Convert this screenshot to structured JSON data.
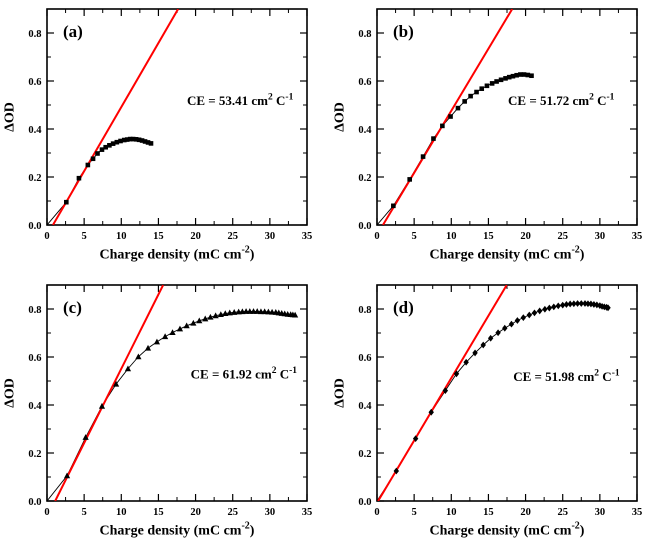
{
  "figure": {
    "background": "#ffffff",
    "axis_color": "#000000",
    "marker_color": "#000000",
    "fit_line_color": "#ff0000"
  },
  "chart_data": [
    {
      "id": "a",
      "type": "scatter",
      "panel_label": "(a)",
      "marker": "square",
      "marker_color": "#000000",
      "connector_color": "#000000",
      "fit_line": {
        "color": "#ff0000",
        "x_intercept": 0.8,
        "slope_od_per_mC": 0.05341
      },
      "annotation": {
        "prefix": "CE = ",
        "value": "53.41",
        "unit_a": " cm",
        "sup_a": "2",
        "unit_b": " C",
        "sup_b": "-1"
      },
      "annotation_pos": {
        "x": 26.0,
        "y": 0.5
      },
      "xlabel": {
        "main": "Charge density (mC cm",
        "sup": "-2",
        "close": ")"
      },
      "ylabel": "ΔOD",
      "xlim": [
        0,
        35
      ],
      "ylim": [
        0,
        0.9
      ],
      "x_ticks": {
        "values": [
          0,
          5,
          10,
          15,
          20,
          25,
          30,
          35
        ],
        "labels": [
          "0",
          "5",
          "10",
          "15",
          "20",
          "25",
          "30",
          "35"
        ],
        "minor_step": 2.5
      },
      "y_ticks": {
        "values": [
          0,
          0.2,
          0.4,
          0.6,
          0.8
        ],
        "labels": [
          "0.0",
          "0.2",
          "0.4",
          "0.6",
          "0.8"
        ],
        "minor_step": 0.1
      },
      "x": [
        2.6,
        4.3,
        5.5,
        6.2,
        6.8,
        7.4,
        7.9,
        8.4,
        8.9,
        9.4,
        9.9,
        10.4,
        10.8,
        11.2,
        11.6,
        12.0,
        12.4,
        12.8,
        13.2,
        13.6,
        14.0
      ],
      "y": [
        0.095,
        0.195,
        0.25,
        0.276,
        0.298,
        0.314,
        0.324,
        0.332,
        0.339,
        0.345,
        0.35,
        0.354,
        0.356,
        0.358,
        0.358,
        0.357,
        0.355,
        0.352,
        0.348,
        0.344,
        0.34
      ]
    },
    {
      "id": "b",
      "type": "scatter",
      "panel_label": "(b)",
      "marker": "square",
      "marker_color": "#000000",
      "connector_color": "#000000",
      "fit_line": {
        "color": "#ff0000",
        "x_intercept": 0.8,
        "slope_od_per_mC": 0.05172
      },
      "annotation": {
        "prefix": "CE = ",
        "value": "51.72",
        "unit_a": " cm",
        "sup_a": "2",
        "unit_b": " C",
        "sup_b": "-1"
      },
      "annotation_pos": {
        "x": 24.8,
        "y": 0.5
      },
      "xlabel": {
        "main": "Charge density (mC cm",
        "sup": "-2",
        "close": ")"
      },
      "ylabel": "ΔOD",
      "xlim": [
        0,
        35
      ],
      "ylim": [
        0,
        0.9
      ],
      "x_ticks": {
        "values": [
          0,
          5,
          10,
          15,
          20,
          25,
          30,
          35
        ],
        "labels": [
          "0",
          "5",
          "10",
          "15",
          "20",
          "25",
          "30",
          "35"
        ],
        "minor_step": 2.5
      },
      "y_ticks": {
        "values": [
          0,
          0.2,
          0.4,
          0.6,
          0.8
        ],
        "labels": [
          "0.0",
          "0.2",
          "0.4",
          "0.6",
          "0.8"
        ],
        "minor_step": 0.1
      },
      "x": [
        2.2,
        4.4,
        6.2,
        7.6,
        8.8,
        9.9,
        10.9,
        11.8,
        12.6,
        13.4,
        14.1,
        14.8,
        15.5,
        16.1,
        16.7,
        17.3,
        17.8,
        18.3,
        18.8,
        19.3,
        19.8,
        20.3,
        20.8
      ],
      "y": [
        0.08,
        0.19,
        0.285,
        0.36,
        0.413,
        0.452,
        0.487,
        0.515,
        0.537,
        0.554,
        0.568,
        0.58,
        0.59,
        0.598,
        0.605,
        0.611,
        0.616,
        0.62,
        0.624,
        0.627,
        0.627,
        0.625,
        0.622
      ]
    },
    {
      "id": "c",
      "type": "scatter",
      "panel_label": "(c)",
      "marker": "triangle",
      "marker_color": "#000000",
      "connector_color": "#000000",
      "fit_line": {
        "color": "#ff0000",
        "x_intercept": 1.1,
        "slope_od_per_mC": 0.06192
      },
      "annotation": {
        "prefix": "CE = ",
        "value": "61.92",
        "unit_a": " cm",
        "sup_a": "2",
        "unit_b": " C",
        "sup_b": "-1"
      },
      "annotation_pos": {
        "x": 26.5,
        "y": 0.51
      },
      "xlabel": {
        "main": "Charge density (mC cm",
        "sup": "-2",
        "close": ")"
      },
      "ylabel": "ΔOD",
      "xlim": [
        0,
        35
      ],
      "ylim": [
        0,
        0.9
      ],
      "x_ticks": {
        "values": [
          0,
          5,
          10,
          15,
          20,
          25,
          30,
          35
        ],
        "labels": [
          "0",
          "5",
          "10",
          "15",
          "20",
          "25",
          "30",
          "35"
        ],
        "minor_step": 2.5
      },
      "y_ticks": {
        "values": [
          0,
          0.2,
          0.4,
          0.6,
          0.8
        ],
        "labels": [
          "0.0",
          "0.2",
          "0.4",
          "0.6",
          "0.8"
        ],
        "minor_step": 0.1
      },
      "x": [
        2.7,
        5.2,
        7.4,
        9.3,
        10.9,
        12.3,
        13.6,
        14.8,
        15.9,
        16.9,
        17.9,
        18.8,
        19.7,
        20.5,
        21.3,
        22.0,
        22.7,
        23.4,
        24.0,
        24.6,
        25.2,
        25.8,
        26.3,
        26.8,
        27.3,
        27.8,
        28.3,
        28.8,
        29.3,
        29.8,
        30.3,
        30.8,
        31.2,
        31.6,
        32.0,
        32.4,
        32.8,
        33.1,
        33.4
      ],
      "y": [
        0.105,
        0.265,
        0.395,
        0.487,
        0.551,
        0.601,
        0.637,
        0.663,
        0.685,
        0.702,
        0.717,
        0.73,
        0.741,
        0.751,
        0.759,
        0.766,
        0.772,
        0.777,
        0.781,
        0.784,
        0.786,
        0.788,
        0.789,
        0.79,
        0.79,
        0.79,
        0.79,
        0.789,
        0.789,
        0.788,
        0.787,
        0.786,
        0.784,
        0.782,
        0.78,
        0.778,
        0.777,
        0.776,
        0.775
      ]
    },
    {
      "id": "d",
      "type": "scatter",
      "panel_label": "(d)",
      "marker": "diamond",
      "marker_color": "#000000",
      "connector_color": "#000000",
      "fit_line": {
        "color": "#ff0000",
        "x_intercept": 0.15,
        "slope_od_per_mC": 0.05198
      },
      "annotation": {
        "prefix": "CE = ",
        "value": "51.98",
        "unit_a": " cm",
        "sup_a": "2",
        "unit_b": " C",
        "sup_b": "-1"
      },
      "annotation_pos": {
        "x": 25.5,
        "y": 0.5
      },
      "xlabel": {
        "main": "Charge density (mC cm",
        "sup": "-2",
        "close": ")"
      },
      "ylabel": "ΔOD",
      "xlim": [
        0,
        35
      ],
      "ylim": [
        0,
        0.9
      ],
      "x_ticks": {
        "values": [
          0,
          5,
          10,
          15,
          20,
          25,
          30,
          35
        ],
        "labels": [
          "0",
          "5",
          "10",
          "15",
          "20",
          "25",
          "30",
          "35"
        ],
        "minor_step": 2.5
      },
      "y_ticks": {
        "values": [
          0,
          0.2,
          0.4,
          0.6,
          0.8
        ],
        "labels": [
          "0.0",
          "0.2",
          "0.4",
          "0.6",
          "0.8"
        ],
        "minor_step": 0.1
      },
      "x": [
        2.6,
        5.2,
        7.3,
        9.2,
        10.7,
        12.0,
        13.2,
        14.3,
        15.3,
        16.3,
        17.2,
        18.1,
        18.9,
        19.7,
        20.5,
        21.2,
        21.9,
        22.6,
        23.2,
        23.8,
        24.4,
        25.0,
        25.5,
        26.0,
        26.5,
        27.0,
        27.5,
        28.0,
        28.4,
        28.8,
        29.2,
        29.6,
        30.0,
        30.3,
        30.6,
        30.9,
        31.1
      ],
      "y": [
        0.125,
        0.26,
        0.37,
        0.46,
        0.53,
        0.578,
        0.617,
        0.65,
        0.678,
        0.701,
        0.72,
        0.737,
        0.752,
        0.764,
        0.775,
        0.784,
        0.792,
        0.799,
        0.804,
        0.809,
        0.813,
        0.816,
        0.819,
        0.821,
        0.822,
        0.823,
        0.823,
        0.823,
        0.822,
        0.821,
        0.819,
        0.817,
        0.814,
        0.811,
        0.809,
        0.807,
        0.805
      ]
    }
  ]
}
